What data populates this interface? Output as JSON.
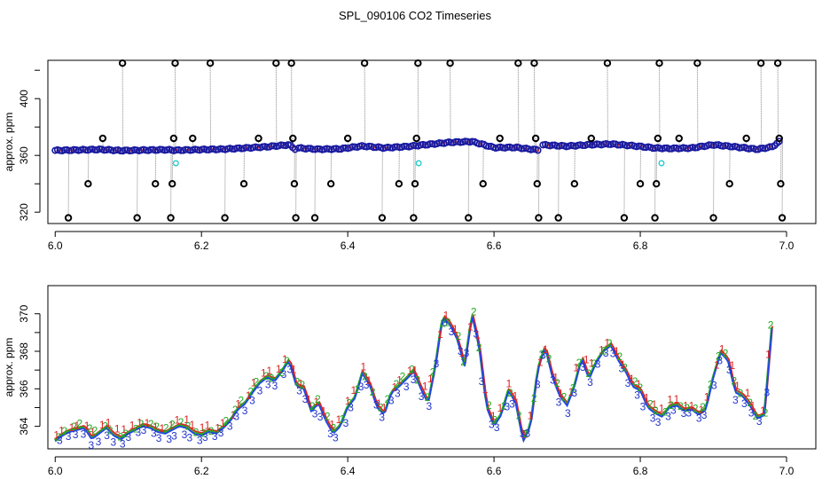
{
  "figure_title": "SPL_090106  CO2 Timeseries",
  "colors": {
    "point_fill": "#2233cc",
    "point_outline": "#1a1aa0",
    "point_accent": "#cc2222",
    "flag_outline": "#000000",
    "cyan": "#22cccc",
    "drop_line": "#888888",
    "series_1": "#dd2222",
    "series_2": "#22aa22",
    "series_3": "#2233cc",
    "line_main": "#2244ee"
  },
  "chart_data": [
    {
      "type": "scatter",
      "title": "SPL_090106  CO2 Timeseries",
      "xlabel": "",
      "ylabel": "approx. ppm",
      "xlim": [
        5.99,
        7.04
      ],
      "ylim": [
        312,
        427
      ],
      "xticks": [
        "6.0",
        "6.2",
        "6.4",
        "6.6",
        "6.8",
        "7.0"
      ],
      "yticks": [
        "320",
        "360",
        "400"
      ],
      "baseline_segments": [
        {
          "x": [
            6.0,
            6.03,
            6.06,
            6.09,
            6.12,
            6.15,
            6.165,
            6.2,
            6.23,
            6.26,
            6.29,
            6.32,
            6.328
          ],
          "y": [
            363.5,
            363.8,
            364.2,
            363.4,
            363.7,
            364.0,
            363.6,
            364.1,
            364.4,
            365.2,
            366.1,
            367.5,
            364.5
          ]
        },
        {
          "x": [
            6.333,
            6.36,
            6.39,
            6.42,
            6.45,
            6.48,
            6.51,
            6.54,
            6.57,
            6.6,
            6.63,
            6.66
          ],
          "y": [
            365.2,
            364.3,
            364.6,
            366.6,
            365.3,
            366.2,
            367.7,
            369.2,
            369.8,
            365.5,
            365.6,
            363.8
          ]
        },
        {
          "x": [
            6.667,
            6.7,
            6.73,
            6.76,
            6.79,
            6.82,
            6.84,
            6.87,
            6.9,
            6.93,
            6.96,
            6.98,
            6.99
          ],
          "y": [
            367.4,
            366.5,
            367.5,
            368.0,
            366.8,
            365.2,
            364.9,
            365.2,
            367.5,
            366.0,
            364.3,
            366.0,
            369.5
          ]
        }
      ],
      "flagged_points": [
        {
          "x": 6.018,
          "y": 316
        },
        {
          "x": 6.045,
          "y": 340
        },
        {
          "x": 6.065,
          "y": 372
        },
        {
          "x": 6.092,
          "y": 425
        },
        {
          "x": 6.112,
          "y": 316
        },
        {
          "x": 6.137,
          "y": 340
        },
        {
          "x": 6.158,
          "y": 316
        },
        {
          "x": 6.16,
          "y": 340
        },
        {
          "x": 6.162,
          "y": 372
        },
        {
          "x": 6.164,
          "y": 425
        },
        {
          "x": 6.188,
          "y": 372
        },
        {
          "x": 6.212,
          "y": 425
        },
        {
          "x": 6.232,
          "y": 316
        },
        {
          "x": 6.258,
          "y": 340
        },
        {
          "x": 6.278,
          "y": 372
        },
        {
          "x": 6.302,
          "y": 425
        },
        {
          "x": 6.323,
          "y": 425
        },
        {
          "x": 6.325,
          "y": 372
        },
        {
          "x": 6.327,
          "y": 340
        },
        {
          "x": 6.329,
          "y": 316
        },
        {
          "x": 6.355,
          "y": 316
        },
        {
          "x": 6.377,
          "y": 340
        },
        {
          "x": 6.4,
          "y": 372
        },
        {
          "x": 6.423,
          "y": 425
        },
        {
          "x": 6.447,
          "y": 316
        },
        {
          "x": 6.47,
          "y": 340
        },
        {
          "x": 6.49,
          "y": 316
        },
        {
          "x": 6.492,
          "y": 340
        },
        {
          "x": 6.494,
          "y": 372
        },
        {
          "x": 6.496,
          "y": 425
        },
        {
          "x": 6.54,
          "y": 425
        },
        {
          "x": 6.565,
          "y": 316
        },
        {
          "x": 6.585,
          "y": 340
        },
        {
          "x": 6.608,
          "y": 372
        },
        {
          "x": 6.633,
          "y": 425
        },
        {
          "x": 6.655,
          "y": 425
        },
        {
          "x": 6.657,
          "y": 372
        },
        {
          "x": 6.659,
          "y": 340
        },
        {
          "x": 6.661,
          "y": 316
        },
        {
          "x": 6.688,
          "y": 316
        },
        {
          "x": 6.71,
          "y": 340
        },
        {
          "x": 6.733,
          "y": 372
        },
        {
          "x": 6.755,
          "y": 425
        },
        {
          "x": 6.778,
          "y": 316
        },
        {
          "x": 6.8,
          "y": 340
        },
        {
          "x": 6.82,
          "y": 316
        },
        {
          "x": 6.822,
          "y": 340
        },
        {
          "x": 6.824,
          "y": 372
        },
        {
          "x": 6.826,
          "y": 425
        },
        {
          "x": 6.853,
          "y": 372
        },
        {
          "x": 6.878,
          "y": 425
        },
        {
          "x": 6.9,
          "y": 316
        },
        {
          "x": 6.922,
          "y": 340
        },
        {
          "x": 6.945,
          "y": 372
        },
        {
          "x": 6.965,
          "y": 425
        },
        {
          "x": 6.988,
          "y": 425
        },
        {
          "x": 6.99,
          "y": 372
        },
        {
          "x": 6.992,
          "y": 340
        },
        {
          "x": 6.994,
          "y": 316
        }
      ],
      "cyan_points": [
        {
          "x": 6.165,
          "y": 354.5
        },
        {
          "x": 6.497,
          "y": 354.5
        },
        {
          "x": 6.829,
          "y": 354.5
        }
      ]
    },
    {
      "type": "line",
      "title": "",
      "xlabel": "",
      "ylabel": "approx. ppm",
      "xlim": [
        5.99,
        7.04
      ],
      "ylim": [
        362.8,
        371.5
      ],
      "xticks": [
        "6.0",
        "6.2",
        "6.4",
        "6.6",
        "6.8",
        "7.0"
      ],
      "yticks": [
        "364",
        "366",
        "368",
        "370"
      ],
      "series_labels": [
        "1",
        "2",
        "3"
      ],
      "x": [
        6.0,
        6.01,
        6.02,
        6.03,
        6.04,
        6.05,
        6.06,
        6.07,
        6.08,
        6.09,
        6.1,
        6.11,
        6.12,
        6.13,
        6.14,
        6.15,
        6.16,
        6.17,
        6.18,
        6.19,
        6.2,
        6.21,
        6.22,
        6.23,
        6.24,
        6.25,
        6.26,
        6.27,
        6.28,
        6.29,
        6.3,
        6.31,
        6.32,
        6.33,
        6.34,
        6.35,
        6.36,
        6.37,
        6.38,
        6.39,
        6.4,
        6.41,
        6.42,
        6.43,
        6.44,
        6.45,
        6.46,
        6.47,
        6.48,
        6.49,
        6.5,
        6.51,
        6.52,
        6.53,
        6.54,
        6.55,
        6.56,
        6.57,
        6.58,
        6.59,
        6.6,
        6.61,
        6.62,
        6.63,
        6.64,
        6.65,
        6.66,
        6.67,
        6.68,
        6.69,
        6.7,
        6.71,
        6.72,
        6.73,
        6.74,
        6.75,
        6.76,
        6.77,
        6.78,
        6.79,
        6.8,
        6.81,
        6.82,
        6.83,
        6.84,
        6.85,
        6.86,
        6.87,
        6.88,
        6.89,
        6.9,
        6.91,
        6.92,
        6.93,
        6.94,
        6.95,
        6.96,
        6.97,
        6.98
      ],
      "values": [
        363.2,
        363.5,
        363.7,
        363.8,
        363.9,
        363.3,
        363.6,
        363.9,
        363.5,
        363.3,
        363.6,
        363.8,
        364.0,
        363.9,
        363.7,
        363.6,
        363.8,
        364.0,
        363.9,
        363.6,
        363.5,
        363.7,
        363.6,
        363.9,
        364.3,
        364.9,
        365.2,
        365.8,
        366.3,
        366.6,
        366.4,
        366.9,
        367.5,
        366.1,
        366.0,
        364.8,
        365.2,
        364.3,
        363.6,
        364.0,
        365.0,
        365.5,
        366.8,
        366.2,
        365.0,
        364.6,
        365.8,
        366.1,
        366.5,
        366.9,
        366.0,
        365.2,
        367.2,
        369.8,
        369.4,
        368.6,
        367.2,
        369.9,
        368.2,
        365.0,
        364.0,
        364.6,
        365.9,
        365.2,
        363.2,
        364.0,
        367.0,
        368.2,
        366.6,
        365.6,
        365.1,
        366.1,
        367.6,
        366.5,
        367.4,
        368.0,
        368.3,
        367.5,
        366.9,
        366.1,
        365.9,
        365.0,
        364.7,
        364.5,
        365.0,
        365.1,
        364.8,
        364.9,
        364.6,
        364.9,
        366.6,
        367.9,
        367.5,
        365.8,
        365.6,
        365.1,
        364.4,
        364.6,
        369.2
      ]
    }
  ]
}
